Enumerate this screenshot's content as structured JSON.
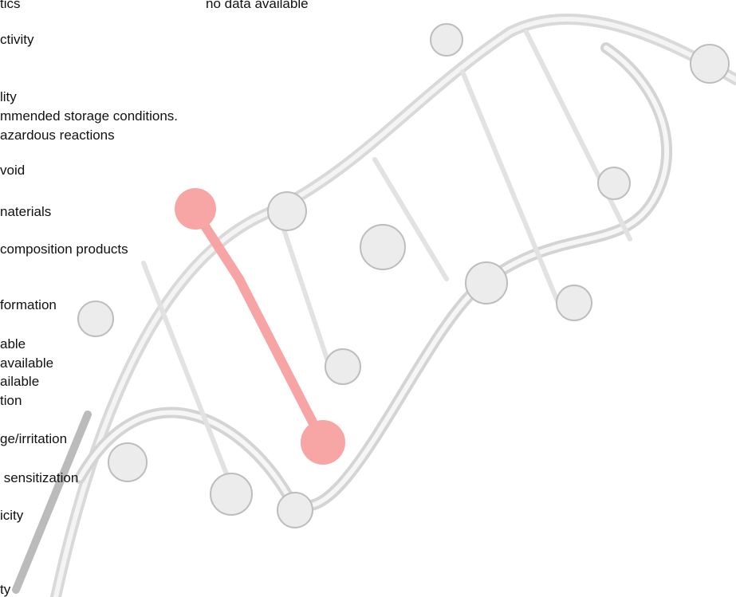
{
  "document": {
    "lines": [
      "tics",
      "ctivity",
      "lity",
      "mmended storage conditions.",
      "azardous reactions",
      "void",
      "naterials",
      "composition products",
      "formation",
      "able",
      "available",
      "ailable",
      "tion",
      "ge/irritation",
      " sensitization",
      "icity",
      "ty"
    ],
    "value_text": "no data available"
  }
}
